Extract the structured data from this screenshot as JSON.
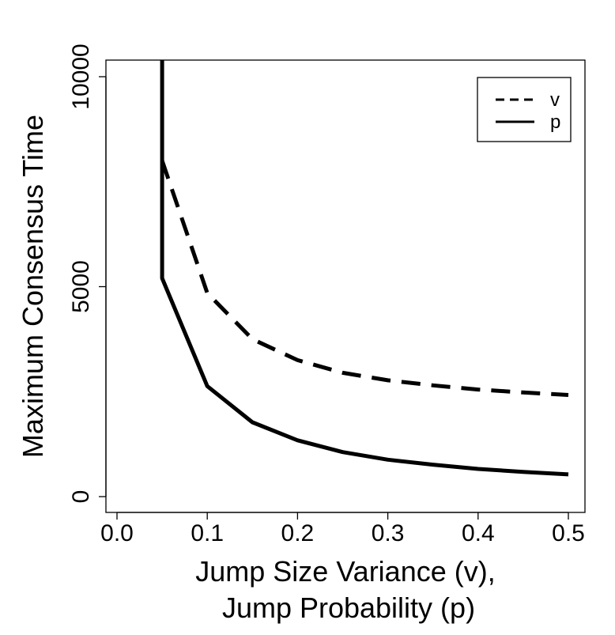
{
  "chart_data": {
    "type": "line",
    "title": "",
    "xlabel_lines": [
      "Jump Size Variance (v),",
      "Jump Probability (p)"
    ],
    "ylabel": "Maximum Consensus Time",
    "xlim": [
      0.0,
      0.5
    ],
    "ylim": [
      0,
      10000
    ],
    "x_ticks": [
      {
        "value": 0.0,
        "label": "0.0"
      },
      {
        "value": 0.1,
        "label": "0.1"
      },
      {
        "value": 0.2,
        "label": "0.2"
      },
      {
        "value": 0.3,
        "label": "0.3"
      },
      {
        "value": 0.4,
        "label": "0.4"
      },
      {
        "value": 0.5,
        "label": "0.5"
      }
    ],
    "y_ticks": [
      {
        "value": 0,
        "label": "0"
      },
      {
        "value": 5000,
        "label": "5000"
      },
      {
        "value": 10000,
        "label": "10000"
      }
    ],
    "legend_position": "top-right",
    "series": [
      {
        "name": "v",
        "style": "dashed",
        "x": [
          0.05,
          0.1,
          0.15,
          0.2,
          0.25,
          0.3,
          0.35,
          0.4,
          0.45,
          0.5
        ],
        "y": [
          8000,
          4850,
          3750,
          3250,
          2950,
          2770,
          2650,
          2550,
          2480,
          2420
        ]
      },
      {
        "name": "p",
        "style": "solid",
        "x": [
          0.05,
          0.05,
          0.1,
          0.15,
          0.2,
          0.25,
          0.3,
          0.35,
          0.4,
          0.45,
          0.5
        ],
        "y": [
          10500,
          5200,
          2630,
          1770,
          1340,
          1060,
          880,
          760,
          660,
          590,
          530
        ]
      }
    ]
  }
}
